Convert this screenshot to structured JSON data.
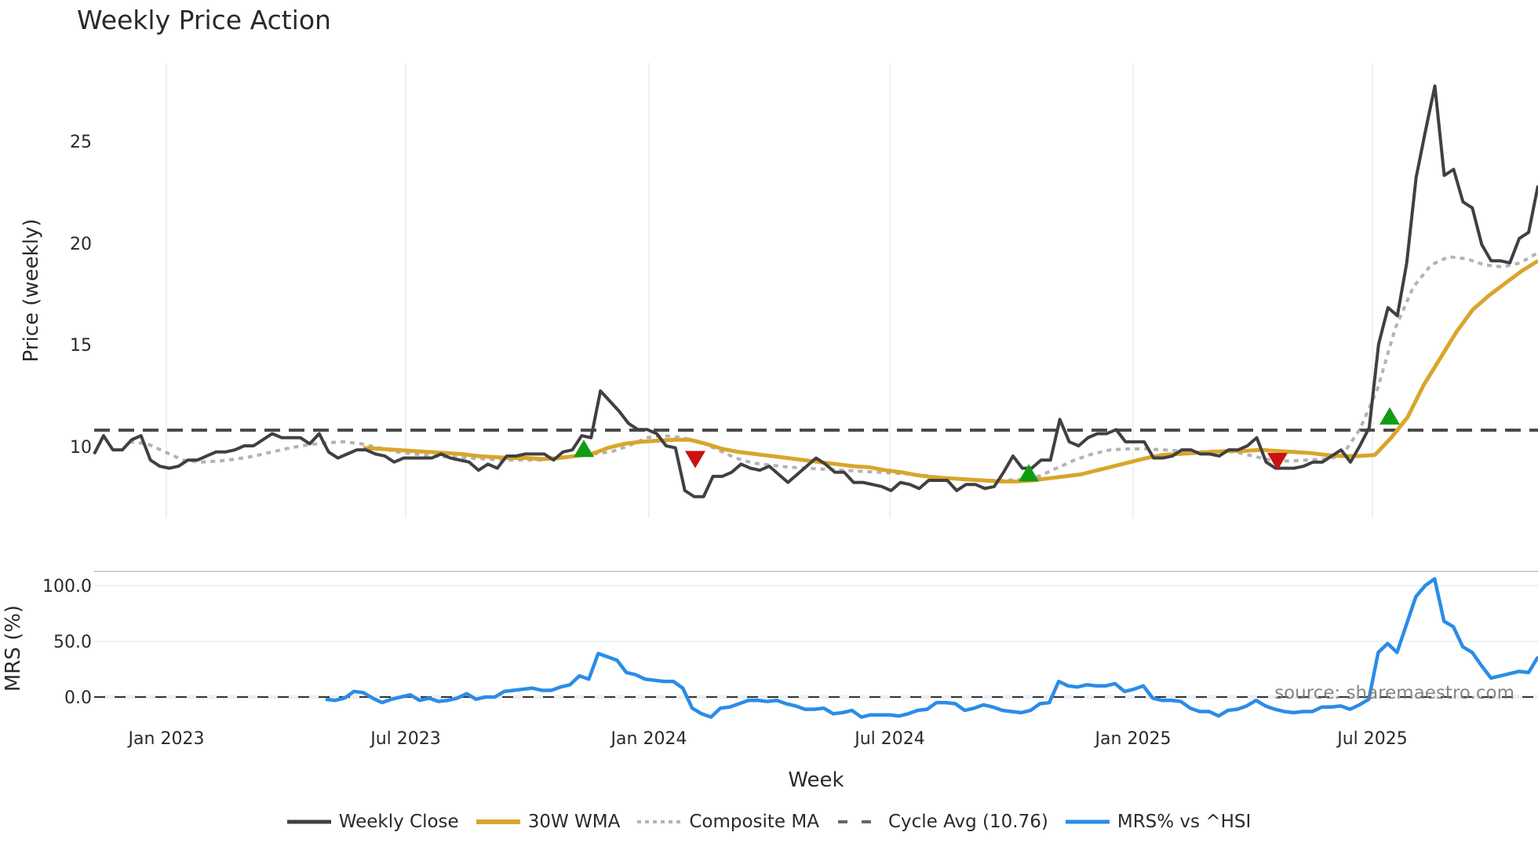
{
  "title": "Weekly Price Action",
  "source_note": "source: sharemaestro.com",
  "colors": {
    "weekly_close": "#404040",
    "wma30": "#d9a52b",
    "composite_ma": "#b3b3b3",
    "cycle_avg": "#4a4a4a",
    "mrs": "#2b8ce6",
    "buy_marker": "#119c11",
    "sell_marker": "#cc1111",
    "grid": "#e8ecf0"
  },
  "legend": [
    {
      "key": "weekly_close",
      "label": "Weekly Close",
      "style": "solid"
    },
    {
      "key": "wma30",
      "label": "30W WMA",
      "style": "solid"
    },
    {
      "key": "composite_ma",
      "label": "Composite MA",
      "style": "dotted"
    },
    {
      "key": "cycle_avg",
      "label": "Cycle Avg (10.76)",
      "style": "dashed"
    },
    {
      "key": "mrs",
      "label": "MRS% vs ^HSI",
      "style": "solid"
    }
  ],
  "chart_data": [
    {
      "type": "line",
      "title": "Weekly Price Action",
      "xlabel": "Week",
      "ylabel": "Price (weekly)",
      "yticks": [
        10,
        15,
        20,
        25
      ],
      "ylim": [
        6.8,
        28.5
      ],
      "xticks": [
        "Jan 2023",
        "Jul 2023",
        "Jan 2024",
        "Jul 2024",
        "Jan 2025",
        "Jul 2025"
      ],
      "grid": "vertical",
      "reference_lines": [
        {
          "name": "Cycle Avg (10.76)",
          "value": 10.76,
          "style": "dashed"
        }
      ],
      "series": [
        {
          "name": "Weekly Close",
          "x_range": [
            "2022-11",
            "2025-10"
          ],
          "values": [
            9.6,
            10.5,
            9.8,
            9.8,
            10.3,
            10.5,
            9.3,
            9.0,
            8.9,
            9.0,
            9.3,
            9.3,
            9.5,
            9.7,
            9.7,
            9.8,
            10.0,
            10.0,
            10.3,
            10.6,
            10.4,
            10.4,
            10.4,
            10.1,
            10.6,
            9.7,
            9.4,
            9.6,
            9.8,
            9.8,
            9.6,
            9.5,
            9.2,
            9.4,
            9.4,
            9.4,
            9.4,
            9.6,
            9.4,
            9.3,
            9.2,
            8.8,
            9.1,
            8.9,
            9.5,
            9.5,
            9.6,
            9.6,
            9.6,
            9.3,
            9.7,
            9.8,
            10.5,
            10.4,
            12.7,
            12.2,
            11.7,
            11.1,
            10.8,
            10.8,
            10.6,
            10.0,
            9.9,
            7.8,
            7.5,
            7.5,
            8.5,
            8.5,
            8.7,
            9.1,
            8.9,
            8.8,
            9.0,
            8.6,
            8.2,
            8.6,
            9.0,
            9.4,
            9.1,
            8.7,
            8.7,
            8.2,
            8.2,
            8.1,
            8.0,
            7.8,
            8.2,
            8.1,
            7.9,
            8.3,
            8.3,
            8.3,
            7.8,
            8.1,
            8.1,
            7.9,
            8.0,
            8.7,
            9.5,
            8.9,
            8.9,
            9.3,
            9.3,
            11.3,
            10.2,
            10.0,
            10.4,
            10.6,
            10.6,
            10.8,
            10.2,
            10.2,
            10.2,
            9.4,
            9.4,
            9.5,
            9.8,
            9.8,
            9.6,
            9.6,
            9.5,
            9.8,
            9.8,
            10.0,
            10.4,
            9.2,
            8.9,
            8.9,
            8.9,
            9.0,
            9.2,
            9.2,
            9.5,
            9.8,
            9.2,
            10.0,
            10.9,
            15.0,
            16.8,
            16.4,
            19.0,
            23.2,
            25.5,
            27.7,
            23.3,
            23.6,
            22.0,
            21.7,
            19.9,
            19.1,
            19.1,
            19.0,
            20.2,
            20.5,
            22.8
          ]
        },
        {
          "name": "30W WMA",
          "values_note": "starts ~Jun 2023",
          "values": [
            9.9,
            9.85,
            9.8,
            9.75,
            9.7,
            9.65,
            9.6,
            9.5,
            9.45,
            9.4,
            9.4,
            9.35,
            9.4,
            9.5,
            9.6,
            9.9,
            10.1,
            10.2,
            10.25,
            10.3,
            10.3,
            10.1,
            9.85,
            9.7,
            9.6,
            9.5,
            9.4,
            9.3,
            9.2,
            9.1,
            9.0,
            8.95,
            8.8,
            8.7,
            8.55,
            8.45,
            8.4,
            8.35,
            8.3,
            8.25,
            8.25,
            8.3,
            8.4,
            8.5,
            8.6,
            8.8,
            9.0,
            9.2,
            9.4,
            9.55,
            9.6,
            9.65,
            9.7,
            9.75,
            9.75,
            9.8,
            9.75,
            9.7,
            9.65,
            9.55,
            9.5,
            9.5,
            9.55,
            10.4,
            11.4,
            13.0,
            14.3,
            15.6,
            16.7,
            17.4,
            18.0,
            18.6,
            19.1
          ]
        },
        {
          "name": "Composite MA",
          "values": [
            10.2,
            10.1,
            9.7,
            9.3,
            9.2,
            9.25,
            9.35,
            9.5,
            9.7,
            9.9,
            10.05,
            10.15,
            10.2,
            10.1,
            9.9,
            9.7,
            9.6,
            9.5,
            9.45,
            9.4,
            9.35,
            9.3,
            9.3,
            9.3,
            9.4,
            9.5,
            9.6,
            9.7,
            10.0,
            10.4,
            10.5,
            10.4,
            10.2,
            9.8,
            9.4,
            9.15,
            9.05,
            8.95,
            8.9,
            8.85,
            8.8,
            8.75,
            8.7,
            8.65,
            8.6,
            8.5,
            8.4,
            8.35,
            8.3,
            8.3,
            8.35,
            8.5,
            8.9,
            9.3,
            9.6,
            9.8,
            9.85,
            9.85,
            9.8,
            9.75,
            9.7,
            9.75,
            9.7,
            9.5,
            9.3,
            9.25,
            9.3,
            9.35,
            9.5,
            10.8,
            12.8,
            15.8,
            17.8,
            18.9,
            19.3,
            19.2,
            18.9,
            18.8,
            19.0,
            19.5
          ]
        },
        {
          "name": "Cycle Avg (10.76)",
          "values": [
            10.76
          ]
        }
      ],
      "markers": [
        {
          "type": "buy",
          "date": "Nov 2023",
          "y": 9.8
        },
        {
          "type": "sell",
          "date": "Feb 2024",
          "y": 9.4
        },
        {
          "type": "buy",
          "date": "Oct 2024",
          "y": 8.6
        },
        {
          "type": "sell",
          "date": "Apr 2025",
          "y": 9.3
        },
        {
          "type": "buy",
          "date": "Jul 2025",
          "y": 11.4
        }
      ]
    },
    {
      "type": "line",
      "ylabel": "MRS (%)",
      "yticks": [
        0.0,
        50.0,
        100.0
      ],
      "ylim": [
        -22,
        112
      ],
      "reference_lines": [
        {
          "value": 0,
          "style": "dashed"
        }
      ],
      "series": [
        {
          "name": "MRS% vs ^HSI",
          "x_range": [
            "2023-05",
            "2025-10"
          ],
          "values": [
            -2,
            -3,
            -1,
            5,
            4,
            -1,
            -5,
            -2,
            0,
            2,
            -3,
            -1,
            -4,
            -3,
            -1,
            3,
            -2,
            0,
            0,
            5,
            6,
            7,
            8,
            6,
            6,
            9,
            11,
            19,
            16,
            39,
            36,
            33,
            22,
            20,
            16,
            15,
            14,
            14,
            8,
            -10,
            -15,
            -18,
            -10,
            -9,
            -6,
            -3,
            -3,
            -4,
            -3,
            -6,
            -8,
            -11,
            -11,
            -10,
            -15,
            -14,
            -12,
            -18,
            -16,
            -16,
            -16,
            -17,
            -15,
            -12,
            -11,
            -5,
            -5,
            -6,
            -12,
            -10,
            -7,
            -9,
            -12,
            -13,
            -14,
            -12,
            -6,
            -5,
            14,
            10,
            9,
            11,
            10,
            10,
            12,
            5,
            7,
            10,
            -1,
            -3,
            -3,
            -4,
            -10,
            -13,
            -13,
            -17,
            -12,
            -11,
            -8,
            -3,
            -8,
            -11,
            -13,
            -14,
            -13,
            -13,
            -9,
            -9,
            -8,
            -11,
            -7,
            -2,
            40,
            48,
            40,
            65,
            90,
            100,
            106,
            68,
            63,
            45,
            40,
            28,
            17,
            19,
            21,
            23,
            22,
            36
          ]
        }
      ],
      "note": "source: sharemaestro.com"
    }
  ],
  "axes": {
    "price": {
      "label": "Price (weekly)",
      "ticks": [
        "25",
        "20",
        "15",
        "10"
      ]
    },
    "mrs": {
      "label": "MRS (%)",
      "ticks": [
        "100.0",
        "50.0",
        "0.0"
      ]
    },
    "x": {
      "label": "Week",
      "ticks": [
        "Jan 2023",
        "Jul 2023",
        "Jan 2024",
        "Jul 2024",
        "Jan 2025",
        "Jul 2025"
      ]
    }
  }
}
